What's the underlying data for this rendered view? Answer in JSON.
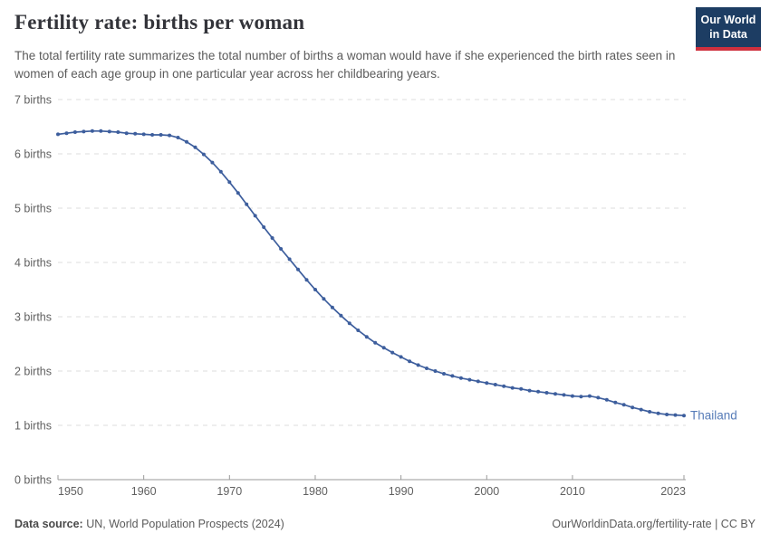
{
  "header": {
    "title": "Fertility rate: births per woman",
    "subtitle": "The total fertility rate summarizes the total number of births a woman would have if she experienced the birth rates seen in women of each age group in one particular year across her childbearing years.",
    "logo": {
      "line1": "Our World",
      "line2": "in Data"
    }
  },
  "footer": {
    "source_label": "Data source:",
    "source_text": " UN, World Population Prospects (2024)",
    "credit": "OurWorldinData.org/fertility-rate | CC BY"
  },
  "colors": {
    "line": "#3d5e9d",
    "entity_label": "#577cb8",
    "gridline": "#dcdcdc",
    "axis": "#9a9a9a",
    "tick_label": "#606060",
    "logo_bg": "#1d3d63",
    "logo_red": "#cf303e"
  },
  "chart_data": {
    "type": "line",
    "title": "Fertility rate: births per woman",
    "xlabel": "",
    "ylabel": "births",
    "xlim": [
      1950,
      2023
    ],
    "ylim": [
      0,
      7
    ],
    "grid": "horizontal-dashed",
    "legend": "end-of-line entity label",
    "x_ticks": [
      1950,
      1960,
      1970,
      1980,
      1990,
      2000,
      2010,
      2023
    ],
    "y_ticks": [
      0,
      1,
      2,
      3,
      4,
      5,
      6,
      7
    ],
    "y_tick_labels": [
      "0 births",
      "1 births",
      "2 births",
      "3 births",
      "4 births",
      "5 births",
      "6 births",
      "7 births"
    ],
    "series": [
      {
        "name": "Thailand",
        "x": [
          1950,
          1951,
          1952,
          1953,
          1954,
          1955,
          1956,
          1957,
          1958,
          1959,
          1960,
          1961,
          1962,
          1963,
          1964,
          1965,
          1966,
          1967,
          1968,
          1969,
          1970,
          1971,
          1972,
          1973,
          1974,
          1975,
          1976,
          1977,
          1978,
          1979,
          1980,
          1981,
          1982,
          1983,
          1984,
          1985,
          1986,
          1987,
          1988,
          1989,
          1990,
          1991,
          1992,
          1993,
          1994,
          1995,
          1996,
          1997,
          1998,
          1999,
          2000,
          2001,
          2002,
          2003,
          2004,
          2005,
          2006,
          2007,
          2008,
          2009,
          2010,
          2011,
          2012,
          2013,
          2014,
          2015,
          2016,
          2017,
          2018,
          2019,
          2020,
          2021,
          2022,
          2023
        ],
        "values": [
          6.36,
          6.38,
          6.4,
          6.41,
          6.42,
          6.42,
          6.41,
          6.4,
          6.38,
          6.37,
          6.36,
          6.35,
          6.35,
          6.34,
          6.3,
          6.22,
          6.12,
          5.99,
          5.84,
          5.67,
          5.48,
          5.28,
          5.07,
          4.86,
          4.65,
          4.45,
          4.25,
          4.06,
          3.87,
          3.68,
          3.5,
          3.33,
          3.17,
          3.02,
          2.88,
          2.75,
          2.63,
          2.52,
          2.43,
          2.34,
          2.26,
          2.18,
          2.11,
          2.05,
          2.0,
          1.95,
          1.91,
          1.87,
          1.84,
          1.81,
          1.78,
          1.75,
          1.72,
          1.69,
          1.67,
          1.64,
          1.62,
          1.6,
          1.58,
          1.56,
          1.54,
          1.53,
          1.54,
          1.51,
          1.47,
          1.42,
          1.38,
          1.33,
          1.29,
          1.25,
          1.22,
          1.2,
          1.19,
          1.18
        ]
      }
    ]
  }
}
